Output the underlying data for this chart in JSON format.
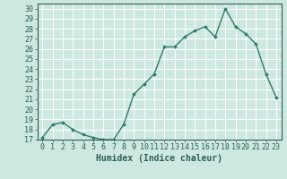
{
  "x": [
    0,
    1,
    2,
    3,
    4,
    5,
    6,
    7,
    8,
    9,
    10,
    11,
    12,
    13,
    14,
    15,
    16,
    17,
    18,
    19,
    20,
    21,
    22,
    23
  ],
  "y": [
    17.2,
    18.5,
    18.7,
    18.0,
    17.5,
    17.2,
    17.0,
    17.0,
    18.5,
    21.5,
    22.5,
    23.5,
    26.2,
    26.2,
    27.2,
    27.8,
    28.2,
    27.2,
    30.0,
    28.2,
    27.5,
    26.5,
    23.5,
    21.2
  ],
  "line_color": "#2e7d6e",
  "marker": "D",
  "marker_size": 2.0,
  "linewidth": 1.0,
  "bg_color": "#cce8e0",
  "grid_color": "#ffffff",
  "xlabel": "Humidex (Indice chaleur)",
  "ylim": [
    17,
    30.5
  ],
  "xlim": [
    -0.5,
    23.5
  ],
  "yticks": [
    17,
    18,
    19,
    20,
    21,
    22,
    23,
    24,
    25,
    26,
    27,
    28,
    29,
    30
  ],
  "xticks": [
    0,
    1,
    2,
    3,
    4,
    5,
    6,
    7,
    8,
    9,
    10,
    11,
    12,
    13,
    14,
    15,
    16,
    17,
    18,
    19,
    20,
    21,
    22,
    23
  ],
  "xlabel_fontsize": 7,
  "tick_fontsize": 6,
  "tick_color": "#2e5f58",
  "label_color": "#2e5f58"
}
